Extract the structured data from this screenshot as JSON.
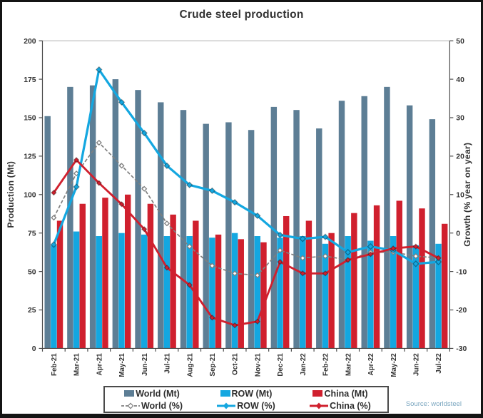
{
  "title": "Crude steel production",
  "source_note": "Source: worldsteel",
  "colors": {
    "world_bar": "#5d7e95",
    "row_bar": "#14a7e0",
    "china_bar": "#d0202e",
    "world_line": "#7f7f7f",
    "row_line": "#14a7e0",
    "china_line": "#d0202e",
    "text": "#333333",
    "source_text": "#7ba7c0"
  },
  "chart_data": {
    "type": "bar",
    "subtype": "combo bar+line, dual axis",
    "title": "Crude steel production",
    "grid": false,
    "legend_position": "bottom",
    "categories": [
      "Feb-21",
      "Mar-21",
      "Apr-21",
      "May-21",
      "Jun-21",
      "Jul-21",
      "Aug-21",
      "Sep-21",
      "Oct-21",
      "Nov-21",
      "Dec-21",
      "Jan-22",
      "Feb-22",
      "Mar-22",
      "Apr-22",
      "May-22",
      "Jun-22",
      "Jul-22"
    ],
    "axes": {
      "left": {
        "label": "Production (Mt)",
        "min": 0,
        "max": 200,
        "ticks": [
          0,
          25,
          50,
          75,
          100,
          125,
          150,
          175,
          200
        ]
      },
      "right": {
        "label": "Growth (% year on year)",
        "min": -30,
        "max": 50,
        "ticks": [
          -30,
          -20,
          -10,
          0,
          10,
          20,
          30,
          40,
          50
        ]
      }
    },
    "series": [
      {
        "name": "World (Mt)",
        "kind": "bar",
        "axis": "left",
        "color": "#5d7e95",
        "values": [
          151,
          170,
          171,
          175,
          168,
          160,
          155,
          146,
          147,
          142,
          157,
          155,
          143,
          161,
          164,
          170,
          158,
          149
        ]
      },
      {
        "name": "ROW (Mt)",
        "kind": "bar",
        "axis": "left",
        "color": "#14a7e0",
        "values": [
          67,
          76,
          73,
          75,
          74,
          73,
          73,
          72,
          75,
          73,
          72,
          73,
          68,
          73,
          70,
          73,
          67,
          68
        ]
      },
      {
        "name": "China (Mt)",
        "kind": "bar",
        "axis": "left",
        "color": "#d0202e",
        "values": [
          83,
          94,
          98,
          100,
          94,
          87,
          83,
          74,
          71,
          69,
          86,
          83,
          75,
          88,
          93,
          96,
          91,
          81
        ]
      },
      {
        "name": "World (%)",
        "kind": "line",
        "axis": "right",
        "color": "#7f7f7f",
        "dash": true,
        "marker": "open-diamond",
        "values": [
          4,
          15.5,
          23.5,
          17.5,
          11.5,
          2.5,
          -3.5,
          -8.5,
          -10.5,
          -11,
          -4.5,
          -6.5,
          -6,
          -7,
          -5,
          -5,
          -6,
          -6.5
        ]
      },
      {
        "name": "ROW (%)",
        "kind": "line",
        "axis": "right",
        "color": "#14a7e0",
        "dash": false,
        "marker": "diamond",
        "values": [
          -3,
          12,
          42.5,
          34,
          26,
          17.5,
          12.5,
          11,
          8,
          4.5,
          -0.5,
          -1.5,
          -1,
          -5,
          -3.5,
          -4.5,
          -8,
          -7.5
        ]
      },
      {
        "name": "China (%)",
        "kind": "line",
        "axis": "right",
        "color": "#d0202e",
        "dash": false,
        "marker": "diamond",
        "values": [
          10.5,
          19,
          13,
          7.5,
          1,
          -9,
          -13.5,
          -22,
          -24,
          -23,
          -7.5,
          -10.5,
          -10.5,
          -7,
          -5.5,
          -4,
          -3.5,
          -6.5
        ]
      }
    ]
  },
  "legend": {
    "items": [
      {
        "label": "World (Mt)"
      },
      {
        "label": "ROW (Mt)"
      },
      {
        "label": "China (Mt)"
      },
      {
        "label": "World (%)"
      },
      {
        "label": "ROW (%)"
      },
      {
        "label": "China (%)"
      }
    ]
  }
}
